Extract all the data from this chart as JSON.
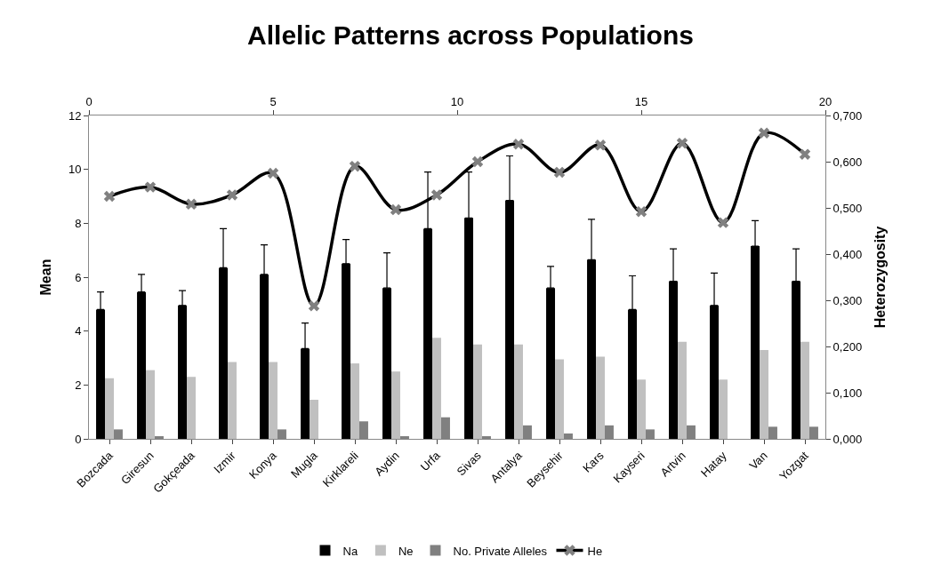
{
  "chart_data": {
    "type": "bar",
    "title": "Allelic Patterns across Populations",
    "ylabel": "Mean",
    "y2label": "Heterozygosity",
    "categories": [
      "Bozcada",
      "Giresun",
      "Gokçeada",
      "Izmir",
      "Konya",
      "Mugla",
      "Kirklareli",
      "Aydin",
      "Urfa",
      "Sivas",
      "Antalya",
      "Beysehir",
      "Kars",
      "Kayseri",
      "Artvin",
      "Hatay",
      "Van",
      "Yozgat"
    ],
    "series": [
      {
        "name": "Na",
        "color": "#000000",
        "values": [
          4.8,
          5.45,
          4.95,
          6.35,
          6.1,
          3.35,
          6.5,
          5.6,
          7.8,
          8.2,
          8.85,
          5.6,
          6.65,
          4.8,
          5.85,
          4.95,
          7.15,
          5.85
        ],
        "errors": [
          [
            4.8,
            5.45
          ],
          [
            5.45,
            6.1
          ],
          [
            4.95,
            5.5
          ],
          [
            6.35,
            7.8
          ],
          [
            6.1,
            7.2
          ],
          [
            3.35,
            4.3
          ],
          [
            6.5,
            7.4
          ],
          [
            5.6,
            6.9
          ],
          [
            7.8,
            9.9
          ],
          [
            8.2,
            9.9
          ],
          [
            8.85,
            10.5
          ],
          [
            5.6,
            6.4
          ],
          [
            6.65,
            8.15
          ],
          [
            4.8,
            6.05
          ],
          [
            5.85,
            7.05
          ],
          [
            4.95,
            6.15
          ],
          [
            7.15,
            8.1
          ],
          [
            5.85,
            7.05
          ]
        ]
      },
      {
        "name": "Ne",
        "color": "#c0c0c0",
        "values": [
          2.25,
          2.55,
          2.3,
          2.85,
          2.85,
          1.45,
          2.8,
          2.5,
          3.75,
          3.5,
          3.5,
          2.95,
          3.05,
          2.2,
          3.6,
          2.2,
          3.3,
          3.6
        ]
      },
      {
        "name": "No. Private Alleles",
        "color": "#808080",
        "values": [
          0.35,
          0.1,
          0,
          0,
          0.35,
          0,
          0.65,
          0.1,
          0.8,
          0.1,
          0.5,
          0.2,
          0.5,
          0.35,
          0.5,
          0,
          0.45,
          0.45
        ]
      },
      {
        "name": "He",
        "type": "line",
        "axis": "y2",
        "color": "#000000",
        "marker": "cross",
        "values": [
          0.525,
          0.545,
          0.508,
          0.528,
          0.575,
          0.288,
          0.59,
          0.496,
          0.528,
          0.6,
          0.638,
          0.577,
          0.636,
          0.492,
          0.64,
          0.468,
          0.662,
          0.616
        ]
      }
    ],
    "ylim": [
      0,
      12
    ],
    "yticks": [
      0,
      2,
      4,
      6,
      8,
      10,
      12
    ],
    "y2lim": [
      0,
      0.7
    ],
    "y2ticks": [
      {
        "value": 0,
        "label": "0,000"
      },
      {
        "value": 0.1,
        "label": "0,100"
      },
      {
        "value": 0.2,
        "label": "0,200"
      },
      {
        "value": 0.3,
        "label": "0,300"
      },
      {
        "value": 0.4,
        "label": "0,400"
      },
      {
        "value": 0.5,
        "label": "0,500"
      },
      {
        "value": 0.6,
        "label": "0,600"
      },
      {
        "value": 0.7,
        "label": "0,700"
      }
    ],
    "x2lim": [
      0,
      20
    ],
    "x2ticks": [
      0,
      5,
      10,
      15,
      20
    ],
    "grid": false,
    "legend": "bottom"
  }
}
